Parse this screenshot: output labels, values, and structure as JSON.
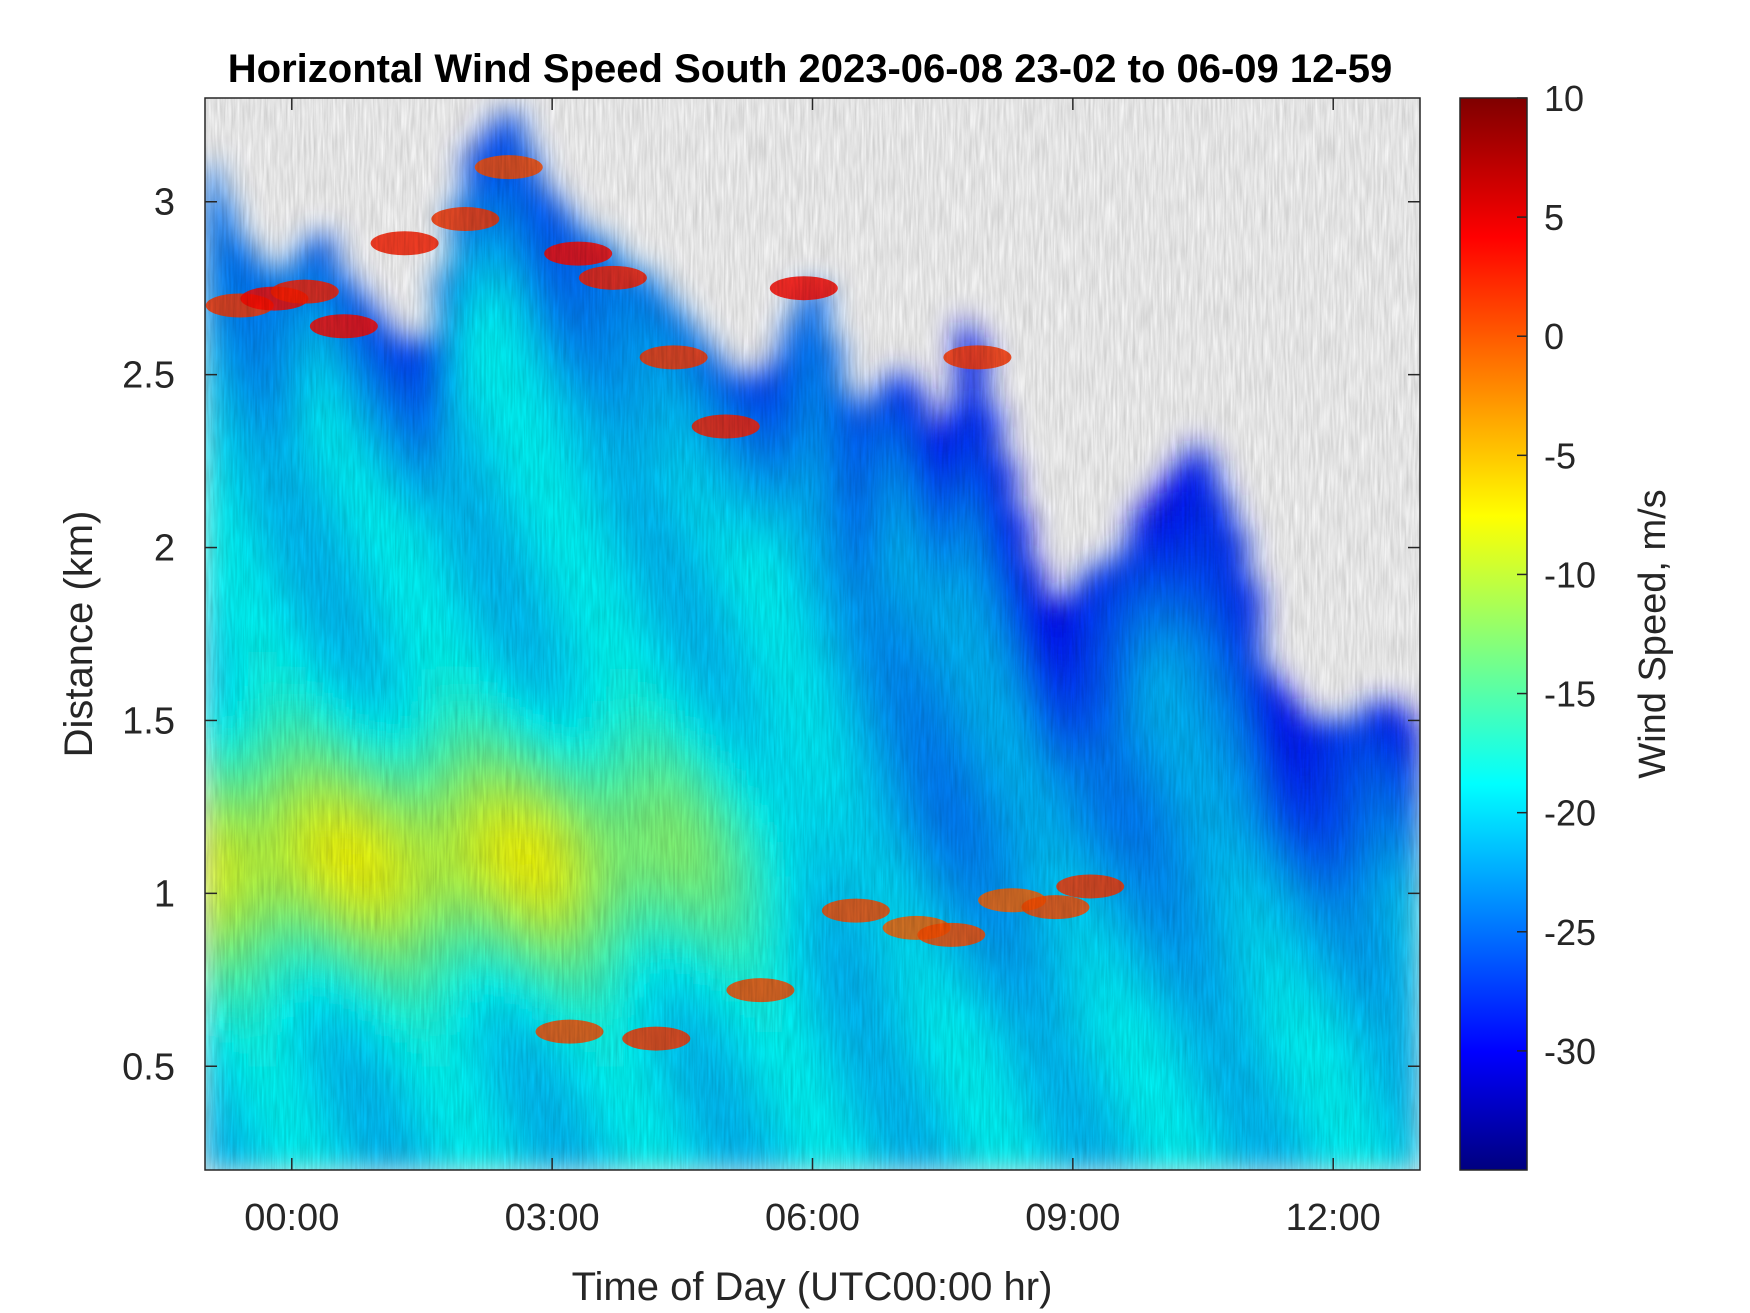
{
  "chart_data": {
    "type": "heatmap",
    "title": "Horizontal Wind Speed South 2023-06-08 23-02 to 06-09 12-59",
    "xlabel": "Time of Day (UTC00:00 hr)",
    "ylabel": "Distance (km)",
    "colorbar_label": "Wind Speed, m/s",
    "x_range_hours": [
      -1.0,
      13.0
    ],
    "x_ticks": [
      {
        "value": 0,
        "label": "00:00"
      },
      {
        "value": 3,
        "label": "03:00"
      },
      {
        "value": 6,
        "label": "06:00"
      },
      {
        "value": 9,
        "label": "09:00"
      },
      {
        "value": 12,
        "label": "12:00"
      }
    ],
    "y_range_km": [
      0.2,
      3.3
    ],
    "y_ticks": [
      {
        "value": 0.5,
        "label": "0.5"
      },
      {
        "value": 1,
        "label": "1"
      },
      {
        "value": 1.5,
        "label": "1.5"
      },
      {
        "value": 2,
        "label": "2"
      },
      {
        "value": 2.5,
        "label": "2.5"
      },
      {
        "value": 3,
        "label": "3"
      }
    ],
    "color_range": [
      -35,
      10
    ],
    "colorbar_ticks": [
      {
        "value": 10,
        "label": "10"
      },
      {
        "value": 5,
        "label": "5"
      },
      {
        "value": 0,
        "label": "0"
      },
      {
        "value": -5,
        "label": "-5"
      },
      {
        "value": -10,
        "label": "-10"
      },
      {
        "value": -15,
        "label": "-15"
      },
      {
        "value": -20,
        "label": "-20"
      },
      {
        "value": -25,
        "label": "-25"
      },
      {
        "value": -30,
        "label": "-30"
      }
    ],
    "colormap": "jet",
    "missing_data_color": "#ffffff",
    "data_top_km": [
      {
        "t": -1.0,
        "km": 3.15
      },
      {
        "t": -0.5,
        "km": 2.85
      },
      {
        "t": 0.0,
        "km": 2.78
      },
      {
        "t": 0.3,
        "km": 2.95
      },
      {
        "t": 0.8,
        "km": 2.72
      },
      {
        "t": 1.2,
        "km": 2.6
      },
      {
        "t": 1.6,
        "km": 2.6
      },
      {
        "t": 2.0,
        "km": 3.1
      },
      {
        "t": 2.5,
        "km": 3.3
      },
      {
        "t": 3.0,
        "km": 3.0
      },
      {
        "t": 3.5,
        "km": 2.9
      },
      {
        "t": 4.0,
        "km": 2.8
      },
      {
        "t": 4.5,
        "km": 2.7
      },
      {
        "t": 5.0,
        "km": 2.5
      },
      {
        "t": 5.5,
        "km": 2.5
      },
      {
        "t": 6.0,
        "km": 2.8
      },
      {
        "t": 6.5,
        "km": 2.35
      },
      {
        "t": 7.0,
        "km": 2.55
      },
      {
        "t": 7.5,
        "km": 2.3
      },
      {
        "t": 7.8,
        "km": 2.7
      },
      {
        "t": 8.2,
        "km": 2.3
      },
      {
        "t": 8.5,
        "km": 2.0
      },
      {
        "t": 8.8,
        "km": 1.8
      },
      {
        "t": 9.0,
        "km": 1.9
      },
      {
        "t": 9.5,
        "km": 1.95
      },
      {
        "t": 10.0,
        "km": 2.2
      },
      {
        "t": 10.5,
        "km": 2.3
      },
      {
        "t": 11.0,
        "km": 2.0
      },
      {
        "t": 11.3,
        "km": 1.6
      },
      {
        "t": 11.8,
        "km": 1.5
      },
      {
        "t": 12.2,
        "km": 1.5
      },
      {
        "t": 12.5,
        "km": 1.55
      },
      {
        "t": 13.0,
        "km": 1.5
      }
    ],
    "features": [
      {
        "name": "low-level jet core",
        "t_range": [
          -1,
          5.5
        ],
        "km_range": [
          0.8,
          1.4
        ],
        "value_ms": -9
      },
      {
        "name": "upper red layer",
        "t_range": [
          -0.8,
          5.2
        ],
        "km_range": [
          2.4,
          2.95
        ],
        "value_ms": 3
      },
      {
        "name": "mid-level orange band",
        "t_range": [
          6.4,
          9.4
        ],
        "km_range": [
          0.85,
          1.05
        ],
        "value_ms": 0
      },
      {
        "name": "lower orange patches",
        "t_range": [
          2.7,
          6.0
        ],
        "km_range": [
          0.5,
          0.75
        ],
        "value_ms": 1
      }
    ]
  }
}
